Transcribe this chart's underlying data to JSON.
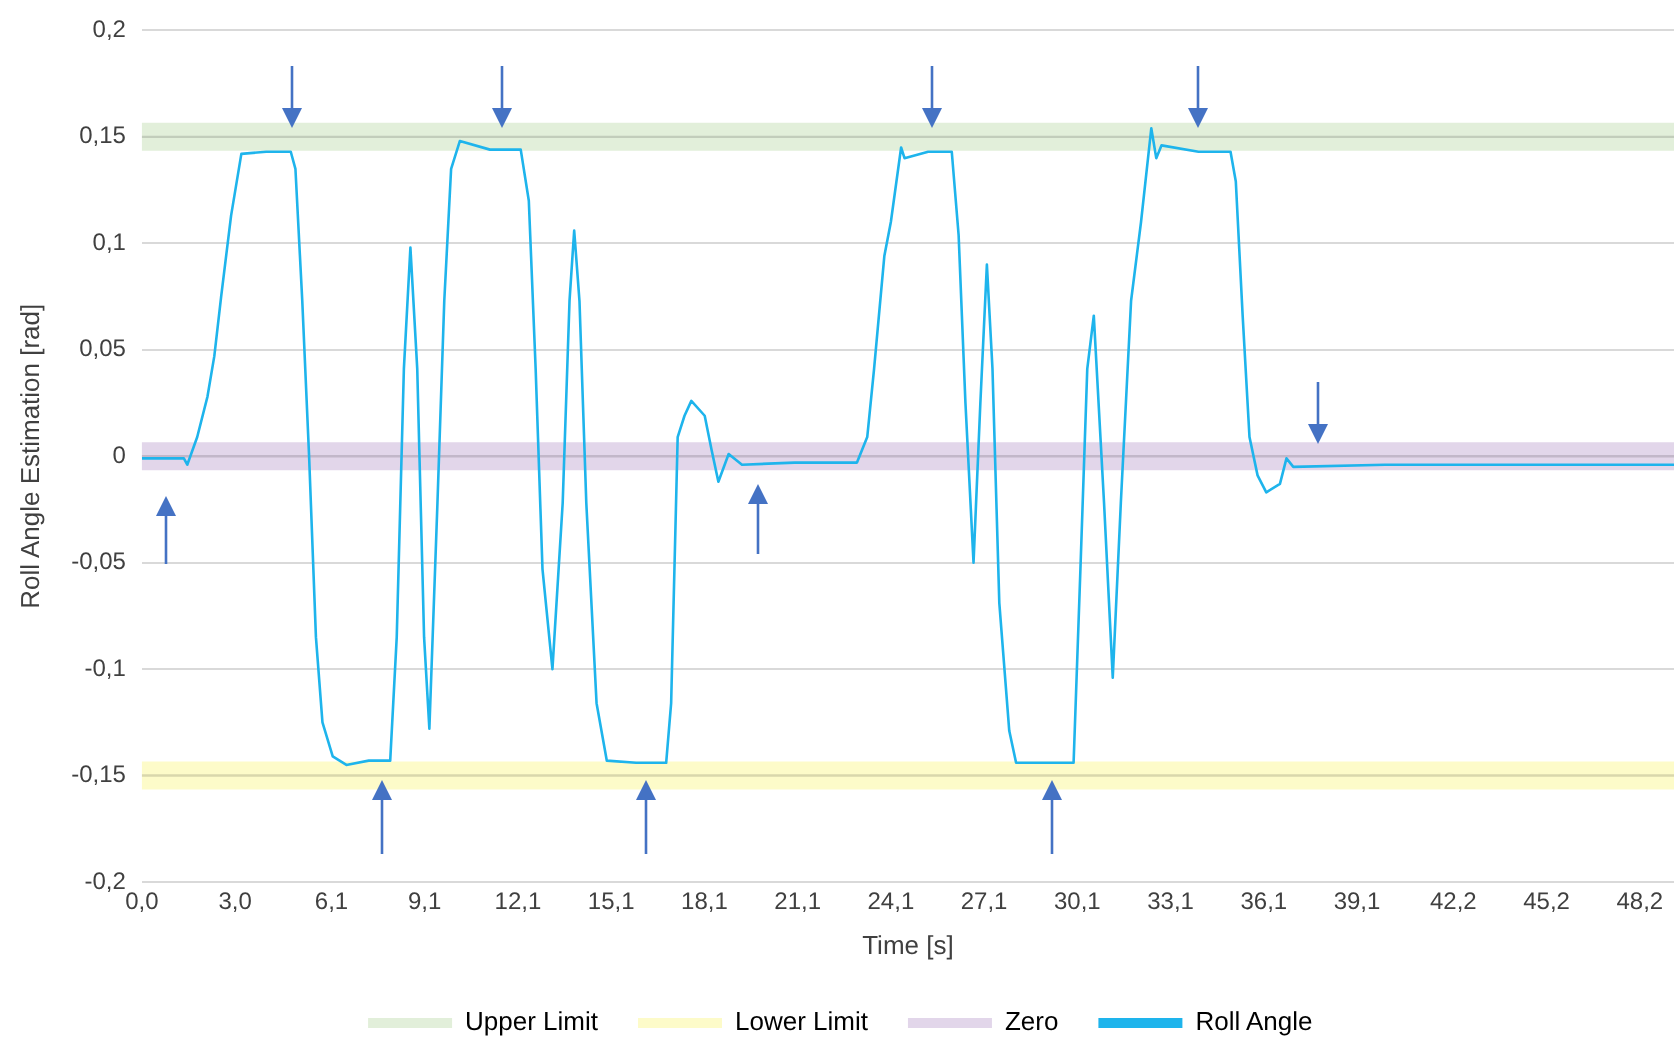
{
  "chart_data": {
    "type": "line",
    "xlabel": "Time [s]",
    "ylabel": "Roll Angle Estimation [rad]",
    "xlim": [
      0,
      49.3
    ],
    "xticks": [
      {
        "value": 0,
        "label": "0,0"
      },
      {
        "value": 3.0,
        "label": "3,0"
      },
      {
        "value": 6.1,
        "label": "6,1"
      },
      {
        "value": 9.1,
        "label": "9,1"
      },
      {
        "value": 12.1,
        "label": "12,1"
      },
      {
        "value": 15.1,
        "label": "15,1"
      },
      {
        "value": 18.1,
        "label": "18,1"
      },
      {
        "value": 21.1,
        "label": "21,1"
      },
      {
        "value": 24.1,
        "label": "24,1"
      },
      {
        "value": 27.1,
        "label": "27,1"
      },
      {
        "value": 30.1,
        "label": "30,1"
      },
      {
        "value": 33.1,
        "label": "33,1"
      },
      {
        "value": 36.1,
        "label": "36,1"
      },
      {
        "value": 39.1,
        "label": "39,1"
      },
      {
        "value": 42.2,
        "label": "42,2"
      },
      {
        "value": 45.2,
        "label": "45,2"
      },
      {
        "value": 48.2,
        "label": "48,2"
      }
    ],
    "ylim": [
      -0.2,
      0.2
    ],
    "yticks": [
      {
        "value": -0.2,
        "label": "-0,2"
      },
      {
        "value": -0.15,
        "label": "-0,15"
      },
      {
        "value": -0.1,
        "label": "-0,1"
      },
      {
        "value": -0.05,
        "label": "-0,05"
      },
      {
        "value": 0,
        "label": "0"
      },
      {
        "value": 0.05,
        "label": "0,05"
      },
      {
        "value": 0.1,
        "label": "0,1"
      },
      {
        "value": 0.15,
        "label": "0,15"
      },
      {
        "value": 0.2,
        "label": "0,2"
      }
    ],
    "grid": "y",
    "legend": "bottom",
    "marker": "none",
    "line_style": "solid",
    "ref_lines": [
      {
        "axis": "y",
        "value": 0.15,
        "label": "Upper Limit",
        "color": "#e2efda"
      },
      {
        "axis": "y",
        "value": -0.15,
        "label": "Lower Limit",
        "color": "#fdfbc9"
      },
      {
        "axis": "y",
        "value": 0,
        "label": "Zero",
        "color": "#e2d6ea"
      }
    ],
    "series": [
      {
        "name": "Roll Angle",
        "color": "#1eb4ec",
        "x": [
          0,
          1.35,
          1.46,
          1.78,
          2.11,
          2.33,
          2.55,
          2.87,
          3.2,
          4.0,
          4.79,
          4.94,
          5.16,
          5.38,
          5.6,
          5.81,
          6.14,
          6.58,
          7.3,
          7.99,
          8.2,
          8.43,
          8.64,
          8.86,
          9.08,
          9.25,
          9.51,
          9.73,
          9.95,
          10.23,
          11.2,
          12.19,
          12.45,
          12.67,
          12.89,
          13.21,
          13.54,
          13.76,
          13.91,
          14.08,
          14.3,
          14.63,
          14.96,
          15.9,
          16.87,
          17.03,
          17.24,
          17.46,
          17.68,
          18.11,
          18.33,
          18.55,
          18.88,
          19.31,
          21.0,
          23.01,
          23.34,
          23.56,
          23.89,
          24.1,
          24.43,
          24.54,
          25.3,
          26.06,
          26.28,
          26.5,
          26.76,
          26.98,
          27.19,
          27.37,
          27.59,
          27.91,
          28.13,
          29.0,
          29.98,
          30.2,
          30.42,
          30.63,
          30.96,
          31.24,
          31.5,
          31.83,
          32.15,
          32.48,
          32.64,
          32.81,
          34.0,
          35.03,
          35.2,
          35.42,
          35.64,
          35.9,
          36.18,
          36.62,
          36.83,
          37.05,
          40.0,
          45.0,
          49.3
        ],
        "values": [
          -0.001,
          -0.001,
          -0.004,
          0.009,
          0.028,
          0.047,
          0.075,
          0.113,
          0.142,
          0.143,
          0.143,
          0.135,
          0.073,
          0,
          -0.085,
          -0.125,
          -0.141,
          -0.145,
          -0.143,
          -0.143,
          -0.085,
          0.041,
          0.098,
          0.041,
          -0.085,
          -0.128,
          -0.022,
          0.073,
          0.135,
          0.148,
          0.144,
          0.144,
          0.12,
          0.041,
          -0.053,
          -0.1,
          -0.022,
          0.073,
          0.106,
          0.073,
          -0.022,
          -0.116,
          -0.143,
          -0.144,
          -0.144,
          -0.116,
          0.009,
          0.019,
          0.026,
          0.019,
          0.003,
          -0.012,
          0.001,
          -0.004,
          -0.003,
          -0.003,
          0.009,
          0.041,
          0.094,
          0.11,
          0.145,
          0.14,
          0.143,
          0.143,
          0.104,
          0.025,
          -0.05,
          0.025,
          0.09,
          0.041,
          -0.069,
          -0.129,
          -0.144,
          -0.144,
          -0.144,
          -0.053,
          0.041,
          0.066,
          -0.022,
          -0.104,
          -0.022,
          0.073,
          0.11,
          0.154,
          0.14,
          0.146,
          0.143,
          0.143,
          0.129,
          0.066,
          0.009,
          -0.009,
          -0.017,
          -0.013,
          -0.001,
          -0.005,
          -0.004,
          -0.004,
          -0.004
        ]
      }
    ]
  }
}
